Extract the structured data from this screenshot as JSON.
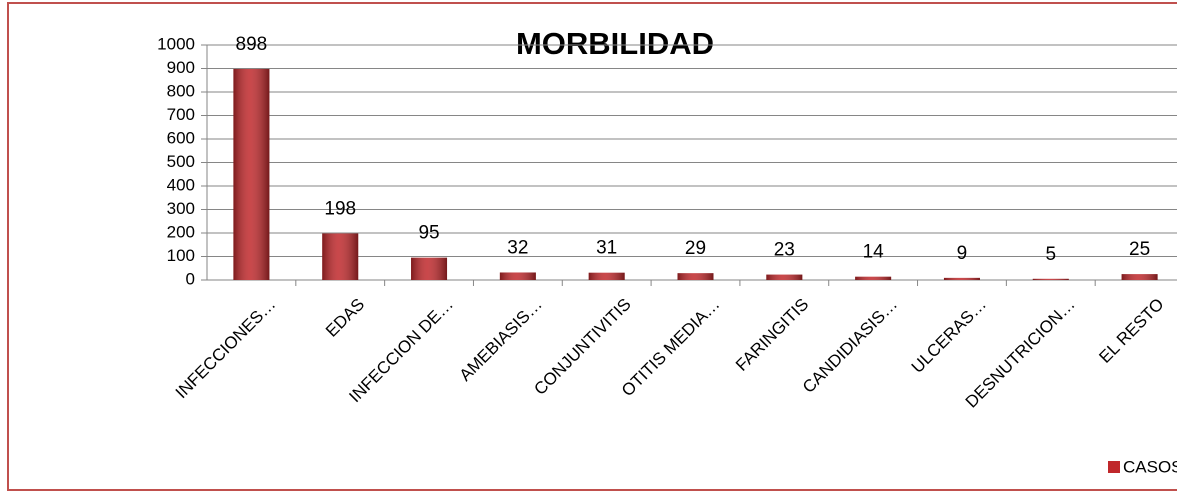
{
  "chart_data": {
    "type": "bar",
    "title": "MORBILIDAD",
    "categories": [
      "INFECCIONES…",
      "EDAS",
      "INFECCION DE…",
      "AMEBIASIS…",
      "CONJUNTIVITIS",
      "OTITIS MEDIA…",
      "FARINGITIS",
      "CANDIDIASIS…",
      "ULCERAS…",
      "DESNUTRICION…",
      "EL RESTO"
    ],
    "series": [
      {
        "name": "CASOS",
        "color": "#c0282b",
        "values": [
          898,
          198,
          95,
          32,
          31,
          29,
          23,
          14,
          9,
          5,
          25
        ]
      }
    ],
    "ylim": [
      0,
      1000
    ],
    "yticks": [
      0,
      100,
      200,
      300,
      400,
      500,
      600,
      700,
      800,
      900,
      1000
    ],
    "grid": true,
    "legend": "bottom-right"
  }
}
